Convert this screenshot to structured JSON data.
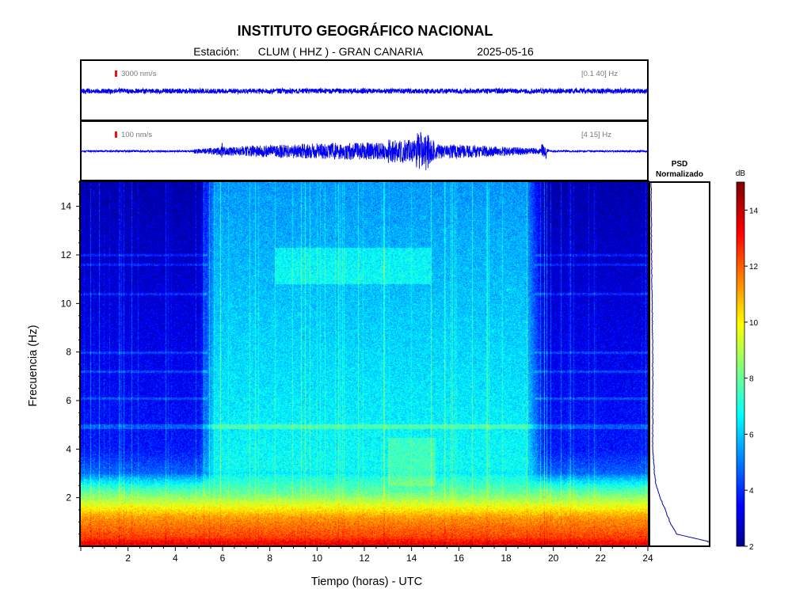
{
  "title": "INSTITUTO GEOGRÁFICO NACIONAL",
  "subtitle": {
    "station_prefix": "Estación:",
    "station": "CLUM ( HHZ ) - GRAN CANARIA",
    "date": "2025-05-16"
  },
  "traces": [
    {
      "scale_label": "3000 nm/s",
      "band_label": "[0.1 40] Hz"
    },
    {
      "scale_label": "100 nm/s",
      "band_label": "[4 15] Hz"
    }
  ],
  "psd_title_line1": "PSD",
  "psd_title_line2": "Normalizado",
  "colorbar": {
    "label": "dB",
    "min": 2,
    "max": 15,
    "ticks": [
      2,
      4,
      6,
      8,
      10,
      12,
      14
    ]
  },
  "colors": {
    "scale_marker": "#ee1111",
    "trace": "#0000ee",
    "psd_line": "#0000aa"
  },
  "chart_data": {
    "type": "heatmap",
    "xlabel": "Tiempo (horas) - UTC",
    "ylabel": "Frecuencia  (Hz)",
    "xlim": [
      0,
      24
    ],
    "ylim": [
      0,
      15
    ],
    "xticks": [
      2,
      4,
      6,
      8,
      10,
      12,
      14,
      16,
      18,
      20,
      22,
      24
    ],
    "yticks": [
      2,
      4,
      6,
      8,
      10,
      12,
      14
    ],
    "colormap": "jet",
    "z_unit": "dB",
    "zlim": [
      2,
      15
    ],
    "description_levels": {
      "low_freq_band_0_1Hz_dB": 13,
      "night_high_freq_dB": 4,
      "day_high_freq_dB": 7
    },
    "psd_normalized_profile": {
      "freq_hz": [
        0.2,
        0.5,
        1.0,
        1.5,
        2.0,
        2.5,
        3.0,
        4.0,
        6.0,
        8.0,
        10.0,
        12.0,
        14.0,
        15.0
      ],
      "value": [
        1.0,
        0.45,
        0.33,
        0.25,
        0.16,
        0.09,
        0.06,
        0.03,
        0.03,
        0.03,
        0.02,
        0.01,
        0.005,
        0.0
      ]
    }
  }
}
